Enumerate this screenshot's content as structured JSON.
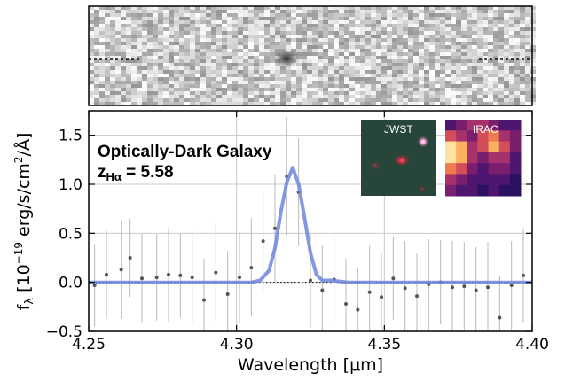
{
  "chart_data": {
    "type": "line",
    "title": "",
    "xlabel": "Wavelength [",
    "xlabel_unit": "μm",
    "xlabel_close": "]",
    "ylabel_prefix": "f",
    "ylabel_sub": "λ",
    "ylabel_mid": " [10",
    "ylabel_exp": "−19",
    "ylabel_units": " erg/s/cm",
    "ylabel_exp2": "2",
    "ylabel_tail": "/Å]",
    "xlim": [
      4.25,
      4.4
    ],
    "ylim": [
      -0.5,
      1.75
    ],
    "x_ticks": [
      4.25,
      4.3,
      4.35,
      4.4
    ],
    "x_tick_labels": [
      "4.25",
      "4.30",
      "4.35",
      "4.40"
    ],
    "y_ticks": [
      -0.5,
      0.0,
      0.5,
      1.0,
      1.5
    ],
    "y_tick_labels": [
      "−0.5",
      "0.0",
      "0.5",
      "1.0",
      "1.5"
    ],
    "grid": true,
    "annotation": {
      "title": "Optically-Dark Galaxy",
      "z_label": "z",
      "z_sub": "Hα",
      "z_value": " = 5.58"
    },
    "insets": [
      {
        "label": "JWST"
      },
      {
        "label": "IRAC"
      }
    ],
    "series": [
      {
        "kind": "model",
        "color": "#6f86dd",
        "x": [
          4.25,
          4.305,
          4.308,
          4.311,
          4.313,
          4.315,
          4.317,
          4.319,
          4.321,
          4.323,
          4.325,
          4.327,
          4.329,
          4.332,
          4.335,
          4.338,
          4.4
        ],
        "y": [
          0.0,
          0.0,
          0.02,
          0.12,
          0.35,
          0.72,
          1.02,
          1.17,
          1.0,
          0.66,
          0.3,
          0.08,
          0.02,
          0.02,
          0.01,
          0.0,
          0.0
        ]
      },
      {
        "kind": "data",
        "color": "#555555",
        "x": [
          4.252,
          4.256,
          4.261,
          4.264,
          4.268,
          4.273,
          4.277,
          4.281,
          4.285,
          4.289,
          4.293,
          4.297,
          4.301,
          4.305,
          4.309,
          4.313,
          4.317,
          4.321,
          4.325,
          4.329,
          4.333,
          4.337,
          4.341,
          4.345,
          4.349,
          4.353,
          4.357,
          4.361,
          4.365,
          4.369,
          4.373,
          4.377,
          4.381,
          4.385,
          4.389,
          4.393,
          4.397
        ],
        "y": [
          -0.03,
          0.08,
          0.13,
          0.25,
          0.04,
          0.05,
          0.08,
          0.07,
          0.05,
          -0.18,
          0.1,
          -0.12,
          0.05,
          0.15,
          0.42,
          0.55,
          1.08,
          0.92,
          0.02,
          -0.08,
          0.03,
          -0.22,
          -0.28,
          -0.1,
          -0.15,
          0.04,
          -0.06,
          -0.14,
          -0.02,
          0.0,
          -0.05,
          -0.04,
          -0.08,
          -0.05,
          -0.36,
          -0.03,
          0.07
        ],
        "err": [
          0.42,
          0.45,
          0.5,
          0.4,
          0.46,
          0.44,
          0.48,
          0.43,
          0.47,
          0.42,
          0.5,
          0.44,
          0.46,
          0.5,
          0.52,
          0.55,
          0.6,
          0.55,
          0.48,
          0.45,
          0.44,
          0.46,
          0.43,
          0.47,
          0.45,
          0.42,
          0.48,
          0.44,
          0.46,
          0.43,
          0.47,
          0.45,
          0.44,
          0.46,
          0.42,
          0.45,
          0.48
        ]
      }
    ]
  }
}
